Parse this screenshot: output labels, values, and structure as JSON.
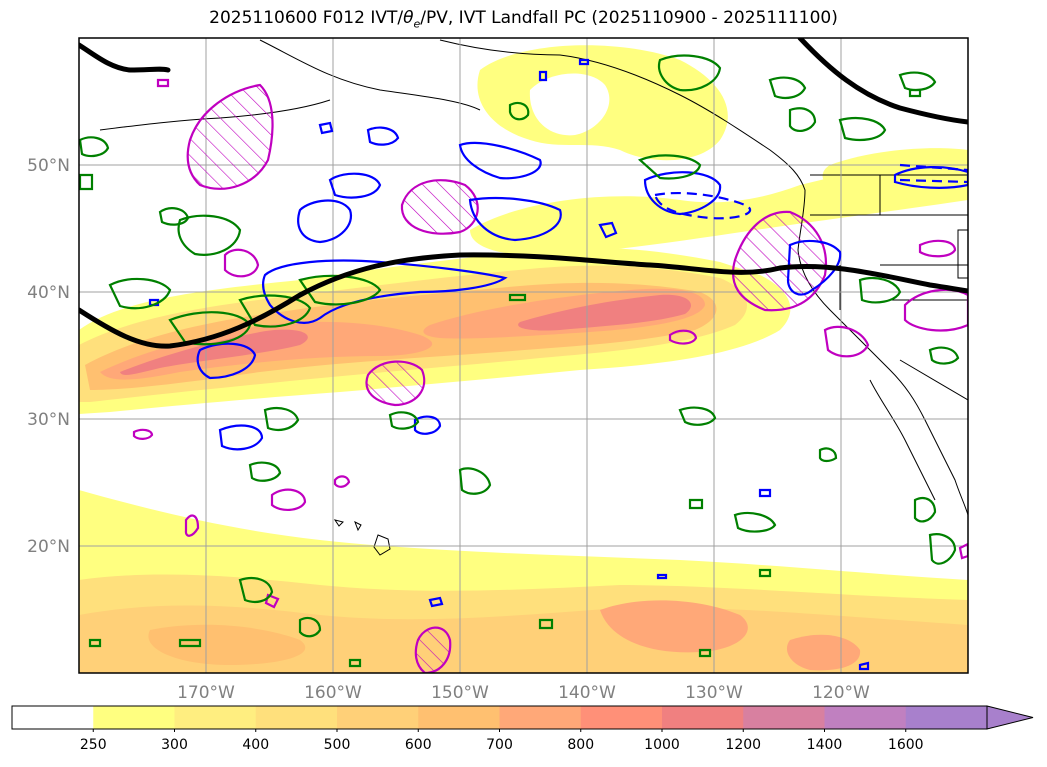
{
  "title": "2025110600 F012 IVT/θe/PV, IVT Landfall PC (2025110900 - 2025111100)",
  "title_parts": {
    "prefix": "2025110600 F012 IVT/",
    "theta": "θ",
    "theta_sub": "e",
    "suffix": "/PV, IVT Landfall PC (2025110900 - 2025111100)"
  },
  "map": {
    "lon_range": [
      -180,
      -110
    ],
    "lat_range": [
      10,
      60
    ],
    "lat_labels": [
      {
        "value": 50,
        "text": "50°N"
      },
      {
        "value": 40,
        "text": "40°N"
      },
      {
        "value": 30,
        "text": "30°N"
      },
      {
        "value": 20,
        "text": "20°N"
      }
    ],
    "lon_labels": [
      {
        "value": -170,
        "text": "170°W"
      },
      {
        "value": -160,
        "text": "160°W"
      },
      {
        "value": -150,
        "text": "150°W"
      },
      {
        "value": -140,
        "text": "140°W"
      },
      {
        "value": -130,
        "text": "130°W"
      },
      {
        "value": -120,
        "text": "120°W"
      }
    ],
    "colors": {
      "ivt_250": "#ffff80",
      "ivt_300": "#ffe680",
      "ivt_400": "#ffd27a",
      "ivt_500": "#ffb870",
      "ivt_600": "#ff9f70",
      "ivt_800": "#f08080",
      "landfall_pc": "#000000",
      "theta_e": "#008000",
      "pv": "#0000ff",
      "magenta": "#c000c0"
    }
  },
  "colorbar": {
    "levels": [
      "250",
      "300",
      "400",
      "500",
      "600",
      "700",
      "800",
      "1000",
      "1200",
      "1400",
      "1600"
    ],
    "colors": [
      "#ffffff",
      "#ffff80",
      "#ffee80",
      "#ffe07c",
      "#ffd078",
      "#ffc070",
      "#ffa878",
      "#ff9078",
      "#f08080",
      "#d880a0",
      "#c080c0",
      "#a880cc"
    ]
  }
}
